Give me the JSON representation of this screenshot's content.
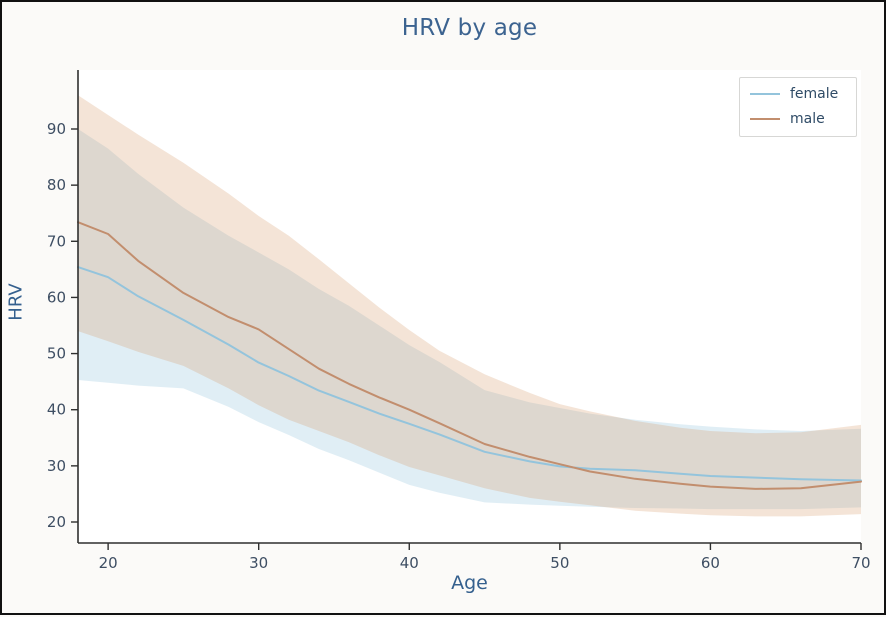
{
  "chart_data": {
    "type": "line",
    "title": "HRV by age",
    "xlabel": "Age",
    "ylabel": "HRV",
    "x_ticks": [
      20,
      30,
      40,
      50,
      60,
      70
    ],
    "y_ticks": [
      20,
      30,
      40,
      50,
      60,
      70,
      80,
      90
    ],
    "xlim": [
      18,
      70
    ],
    "ylim": [
      16.5,
      100.5
    ],
    "grid": false,
    "legend_position": "top-right",
    "ages": [
      18,
      20,
      22,
      25,
      28,
      30,
      32,
      34,
      36,
      38,
      40,
      42,
      45,
      48,
      50,
      52,
      55,
      58,
      60,
      63,
      66,
      70
    ],
    "series": [
      {
        "name": "female",
        "color": "#94c4dc",
        "band_color": "rgba(160, 201, 223, 0.32)",
        "mean": [
          65.4,
          63.6,
          60.2,
          56.0,
          51.6,
          48.4,
          46.0,
          43.4,
          41.4,
          39.3,
          37.5,
          35.6,
          32.5,
          30.8,
          29.9,
          29.5,
          29.2,
          28.6,
          28.2,
          27.9,
          27.6,
          27.4
        ],
        "upper": [
          90.0,
          86.5,
          82.0,
          76.0,
          71.0,
          68.0,
          65.0,
          61.5,
          58.5,
          55.0,
          51.5,
          48.5,
          43.5,
          41.3,
          40.3,
          39.3,
          38.2,
          37.4,
          37.0,
          36.5,
          36.2,
          36.6
        ],
        "lower": [
          45.3,
          44.8,
          44.3,
          43.8,
          40.5,
          37.8,
          35.5,
          33.0,
          31.0,
          28.8,
          26.6,
          25.2,
          23.5,
          23.1,
          22.9,
          22.7,
          22.5,
          22.4,
          22.3,
          22.3,
          22.3,
          22.6
        ]
      },
      {
        "name": "male",
        "color": "#c28e6e",
        "band_color": "rgba(214, 152, 102, 0.26)",
        "mean": [
          73.4,
          71.3,
          66.5,
          60.8,
          56.5,
          54.3,
          50.8,
          47.3,
          44.6,
          42.2,
          40.0,
          37.6,
          33.9,
          31.6,
          30.3,
          29.0,
          27.7,
          26.8,
          26.3,
          25.9,
          26.0,
          27.2
        ],
        "upper": [
          96.0,
          92.5,
          89.0,
          84.0,
          78.5,
          74.5,
          71.0,
          66.8,
          62.5,
          58.2,
          54.2,
          50.5,
          46.3,
          43.0,
          41.0,
          39.7,
          38.0,
          36.8,
          36.2,
          35.8,
          36.0,
          37.3
        ],
        "lower": [
          54.0,
          52.2,
          50.3,
          47.8,
          43.8,
          40.8,
          38.2,
          36.2,
          34.2,
          31.9,
          29.8,
          28.3,
          26.0,
          24.3,
          23.6,
          23.0,
          22.0,
          21.5,
          21.2,
          21.0,
          21.0,
          21.4
        ]
      }
    ],
    "colors": {
      "title": "#3c6390",
      "axis_label": "#35608e",
      "tick_label": "#3e4e63",
      "spine": "#2f2f2f",
      "plot_bg": "#ffffff",
      "figure_bg": "#fbfaf8",
      "legend_border": "#d7d7d5"
    }
  }
}
